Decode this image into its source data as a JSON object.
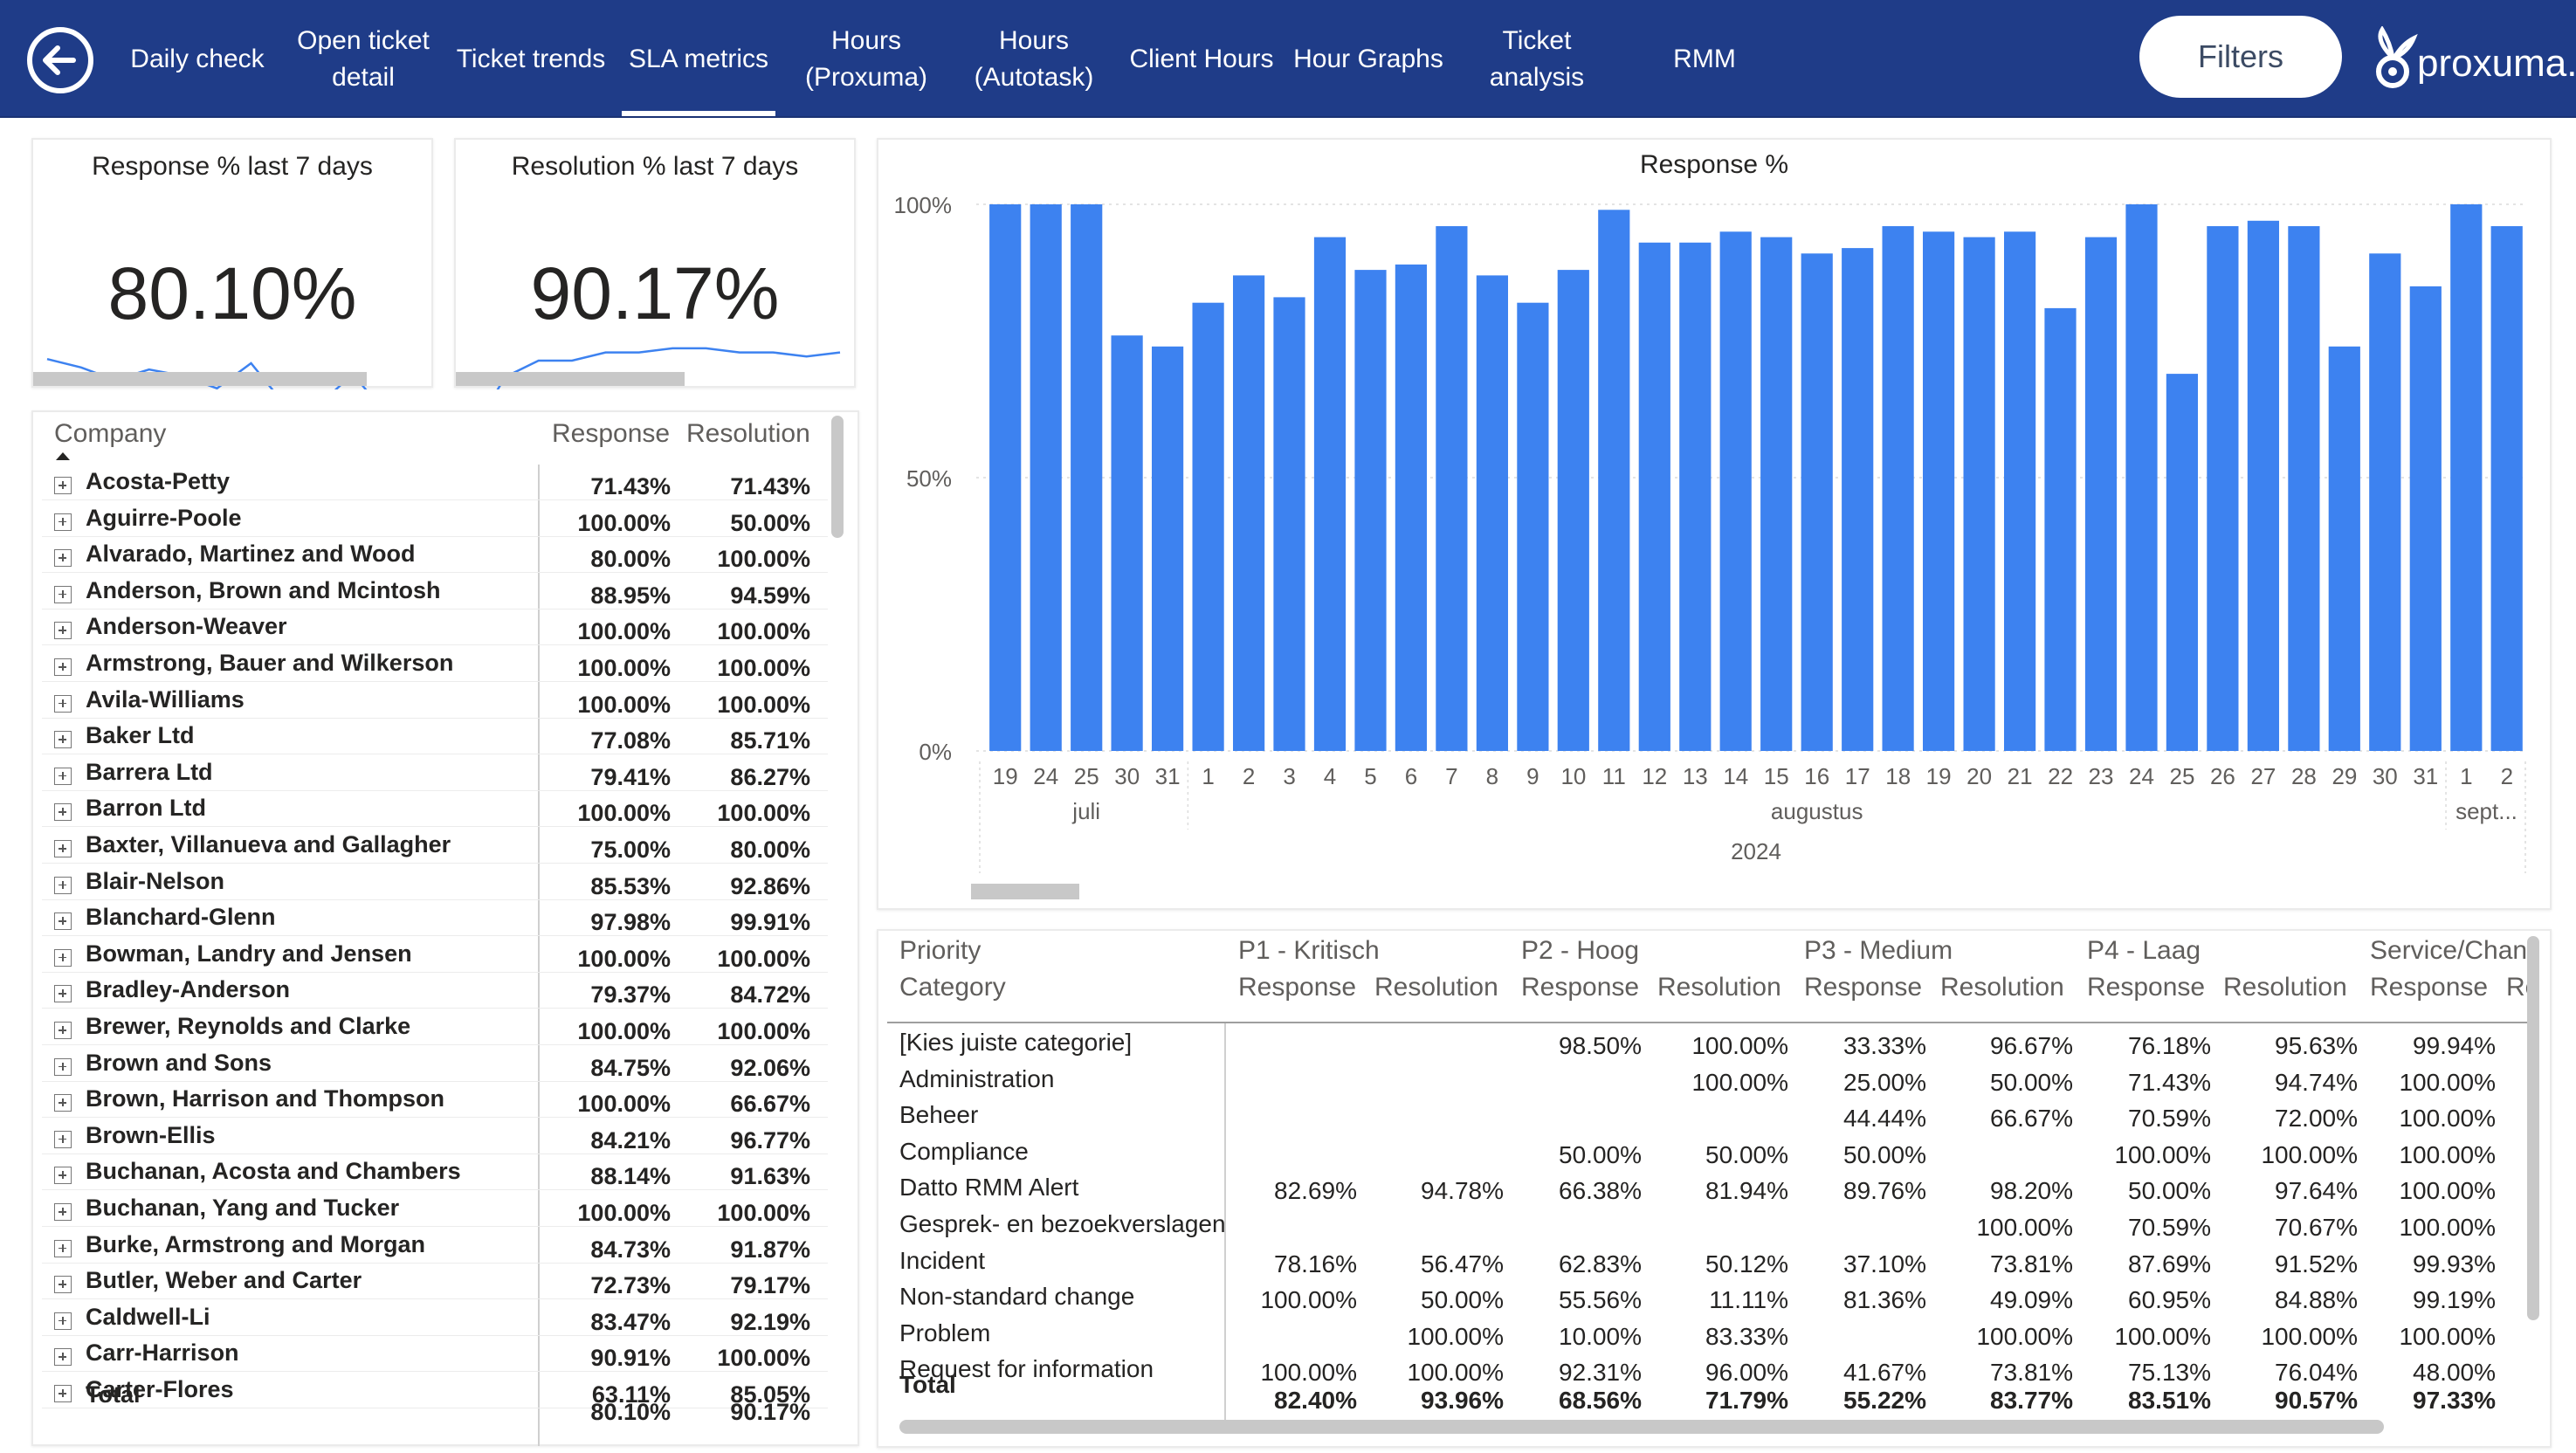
{
  "nav": {
    "items": [
      {
        "label": "Daily check"
      },
      {
        "label": "Open ticket\ndetail"
      },
      {
        "label": "Ticket trends"
      },
      {
        "label": "SLA metrics"
      },
      {
        "label": "Hours\n(Proxuma)"
      },
      {
        "label": "Hours\n(Autotask)"
      },
      {
        "label": "Client Hours"
      },
      {
        "label": "Hour Graphs"
      },
      {
        "label": "Ticket\nanalysis"
      },
      {
        "label": "RMM"
      }
    ],
    "active": "SLA metrics",
    "filters_label": "Filters",
    "logo_text": "proxuma."
  },
  "colors": {
    "nav_bg": "#1f3c88",
    "bar": "#3d82f0",
    "sparkline": "#3d82f0"
  },
  "kpis": [
    {
      "title": "Response % last 7 days",
      "value": "80.10%",
      "spark": [
        62,
        58,
        52,
        57,
        54,
        48,
        60,
        40,
        40,
        55,
        35,
        35
      ]
    },
    {
      "title": "Resolution % last 7 days",
      "value": "90.17%",
      "spark": [
        20,
        48,
        56,
        56,
        60,
        60,
        62,
        62,
        60,
        60,
        58,
        60
      ]
    }
  ],
  "company_table": {
    "headers": {
      "company": "Company",
      "response": "Response",
      "resolution": "Resolution"
    },
    "rows": [
      {
        "name": "Acosta-Petty",
        "response": "71.43%",
        "resolution": "71.43%"
      },
      {
        "name": "Aguirre-Poole",
        "response": "100.00%",
        "resolution": "50.00%"
      },
      {
        "name": "Alvarado, Martinez and Wood",
        "response": "80.00%",
        "resolution": "100.00%"
      },
      {
        "name": "Anderson, Brown and Mcintosh",
        "response": "88.95%",
        "resolution": "94.59%"
      },
      {
        "name": "Anderson-Weaver",
        "response": "100.00%",
        "resolution": "100.00%"
      },
      {
        "name": "Armstrong, Bauer and Wilkerson",
        "response": "100.00%",
        "resolution": "100.00%"
      },
      {
        "name": "Avila-Williams",
        "response": "100.00%",
        "resolution": "100.00%"
      },
      {
        "name": "Baker Ltd",
        "response": "77.08%",
        "resolution": "85.71%"
      },
      {
        "name": "Barrera Ltd",
        "response": "79.41%",
        "resolution": "86.27%"
      },
      {
        "name": "Barron Ltd",
        "response": "100.00%",
        "resolution": "100.00%"
      },
      {
        "name": "Baxter, Villanueva and Gallagher",
        "response": "75.00%",
        "resolution": "80.00%"
      },
      {
        "name": "Blair-Nelson",
        "response": "85.53%",
        "resolution": "92.86%"
      },
      {
        "name": "Blanchard-Glenn",
        "response": "97.98%",
        "resolution": "99.91%"
      },
      {
        "name": "Bowman, Landry and Jensen",
        "response": "100.00%",
        "resolution": "100.00%"
      },
      {
        "name": "Bradley-Anderson",
        "response": "79.37%",
        "resolution": "84.72%"
      },
      {
        "name": "Brewer, Reynolds and Clarke",
        "response": "100.00%",
        "resolution": "100.00%"
      },
      {
        "name": "Brown and Sons",
        "response": "84.75%",
        "resolution": "92.06%"
      },
      {
        "name": "Brown, Harrison and Thompson",
        "response": "100.00%",
        "resolution": "66.67%"
      },
      {
        "name": "Brown-Ellis",
        "response": "84.21%",
        "resolution": "96.77%"
      },
      {
        "name": "Buchanan, Acosta and Chambers",
        "response": "88.14%",
        "resolution": "91.63%"
      },
      {
        "name": "Buchanan, Yang and Tucker",
        "response": "100.00%",
        "resolution": "100.00%"
      },
      {
        "name": "Burke, Armstrong and Morgan",
        "response": "84.73%",
        "resolution": "91.87%"
      },
      {
        "name": "Butler, Weber and Carter",
        "response": "72.73%",
        "resolution": "79.17%"
      },
      {
        "name": "Caldwell-Li",
        "response": "83.47%",
        "resolution": "92.19%"
      },
      {
        "name": "Carr-Harrison",
        "response": "90.91%",
        "resolution": "100.00%"
      },
      {
        "name": "Carter-Flores",
        "response": "63.11%",
        "resolution": "85.05%"
      }
    ],
    "total": {
      "label": "Total",
      "response": "80.10%",
      "resolution": "90.17%"
    }
  },
  "chart_data": {
    "type": "bar",
    "title": "Response %",
    "categories": [
      "19",
      "24",
      "25",
      "30",
      "31",
      "1",
      "2",
      "3",
      "4",
      "5",
      "6",
      "7",
      "8",
      "9",
      "10",
      "11",
      "12",
      "13",
      "14",
      "15",
      "16",
      "17",
      "18",
      "19",
      "20",
      "21",
      "22",
      "23",
      "24",
      "25",
      "26",
      "27",
      "28",
      "29",
      "30",
      "31",
      "1",
      "2"
    ],
    "values": [
      100,
      100,
      100,
      76,
      74,
      82,
      87,
      83,
      94,
      88,
      89,
      96,
      87,
      82,
      88,
      99,
      93,
      93,
      95,
      94,
      91,
      92,
      96,
      95,
      94,
      95,
      81,
      94,
      100,
      69,
      96,
      97,
      96,
      74,
      91,
      85,
      100,
      96
    ],
    "months": [
      {
        "label": "juli",
        "start": 0,
        "end": 4
      },
      {
        "label": "augustus",
        "start": 5,
        "end": 35
      },
      {
        "label": "sept...",
        "start": 36,
        "end": 37
      }
    ],
    "year": "2024",
    "yticks": [
      "0%",
      "50%",
      "100%"
    ],
    "ylim": [
      0,
      100
    ],
    "grid": true
  },
  "priority_table": {
    "col_header_top": "Priority",
    "col_header_row": "Category",
    "groups": [
      "P1 - Kritisch",
      "P2 - Hoog",
      "P3 - Medium",
      "P4 - Laag",
      "Service/Chan"
    ],
    "sub_headers": [
      "Response",
      "Resolution",
      "Response",
      "Resolution",
      "Response",
      "Resolution",
      "Response",
      "Resolution",
      "Response",
      "Re"
    ],
    "rows": [
      {
        "name": "[Kies juiste categorie]",
        "vals": [
          "",
          "",
          "98.50%",
          "100.00%",
          "33.33%",
          "96.67%",
          "76.18%",
          "95.63%",
          "99.94%"
        ]
      },
      {
        "name": "Administration",
        "vals": [
          "",
          "",
          "",
          "100.00%",
          "25.00%",
          "50.00%",
          "71.43%",
          "94.74%",
          "100.00%"
        ]
      },
      {
        "name": "Beheer",
        "vals": [
          "",
          "",
          "",
          "",
          "44.44%",
          "66.67%",
          "70.59%",
          "72.00%",
          "100.00%"
        ]
      },
      {
        "name": "Compliance",
        "vals": [
          "",
          "",
          "50.00%",
          "50.00%",
          "50.00%",
          "",
          "100.00%",
          "100.00%",
          "100.00%"
        ]
      },
      {
        "name": "Datto RMM Alert",
        "vals": [
          "82.69%",
          "94.78%",
          "66.38%",
          "81.94%",
          "89.76%",
          "98.20%",
          "50.00%",
          "97.64%",
          "100.00%"
        ]
      },
      {
        "name": "Gesprek- en bezoekverslagen",
        "vals": [
          "",
          "",
          "",
          "",
          "",
          "100.00%",
          "70.59%",
          "70.67%",
          "100.00%"
        ]
      },
      {
        "name": "Incident",
        "vals": [
          "78.16%",
          "56.47%",
          "62.83%",
          "50.12%",
          "37.10%",
          "73.81%",
          "87.69%",
          "91.52%",
          "99.93%"
        ]
      },
      {
        "name": "Non-standard change",
        "vals": [
          "100.00%",
          "50.00%",
          "55.56%",
          "11.11%",
          "81.36%",
          "49.09%",
          "60.95%",
          "84.88%",
          "99.19%"
        ]
      },
      {
        "name": "Problem",
        "vals": [
          "",
          "100.00%",
          "10.00%",
          "83.33%",
          "",
          "100.00%",
          "100.00%",
          "100.00%",
          "100.00%"
        ]
      },
      {
        "name": "Request for information",
        "vals": [
          "100.00%",
          "100.00%",
          "92.31%",
          "96.00%",
          "41.67%",
          "73.81%",
          "75.13%",
          "76.04%",
          "48.00%"
        ]
      }
    ],
    "total": {
      "name": "Total",
      "vals": [
        "82.40%",
        "93.96%",
        "68.56%",
        "71.79%",
        "55.22%",
        "83.77%",
        "83.51%",
        "90.57%",
        "97.33%"
      ]
    }
  }
}
